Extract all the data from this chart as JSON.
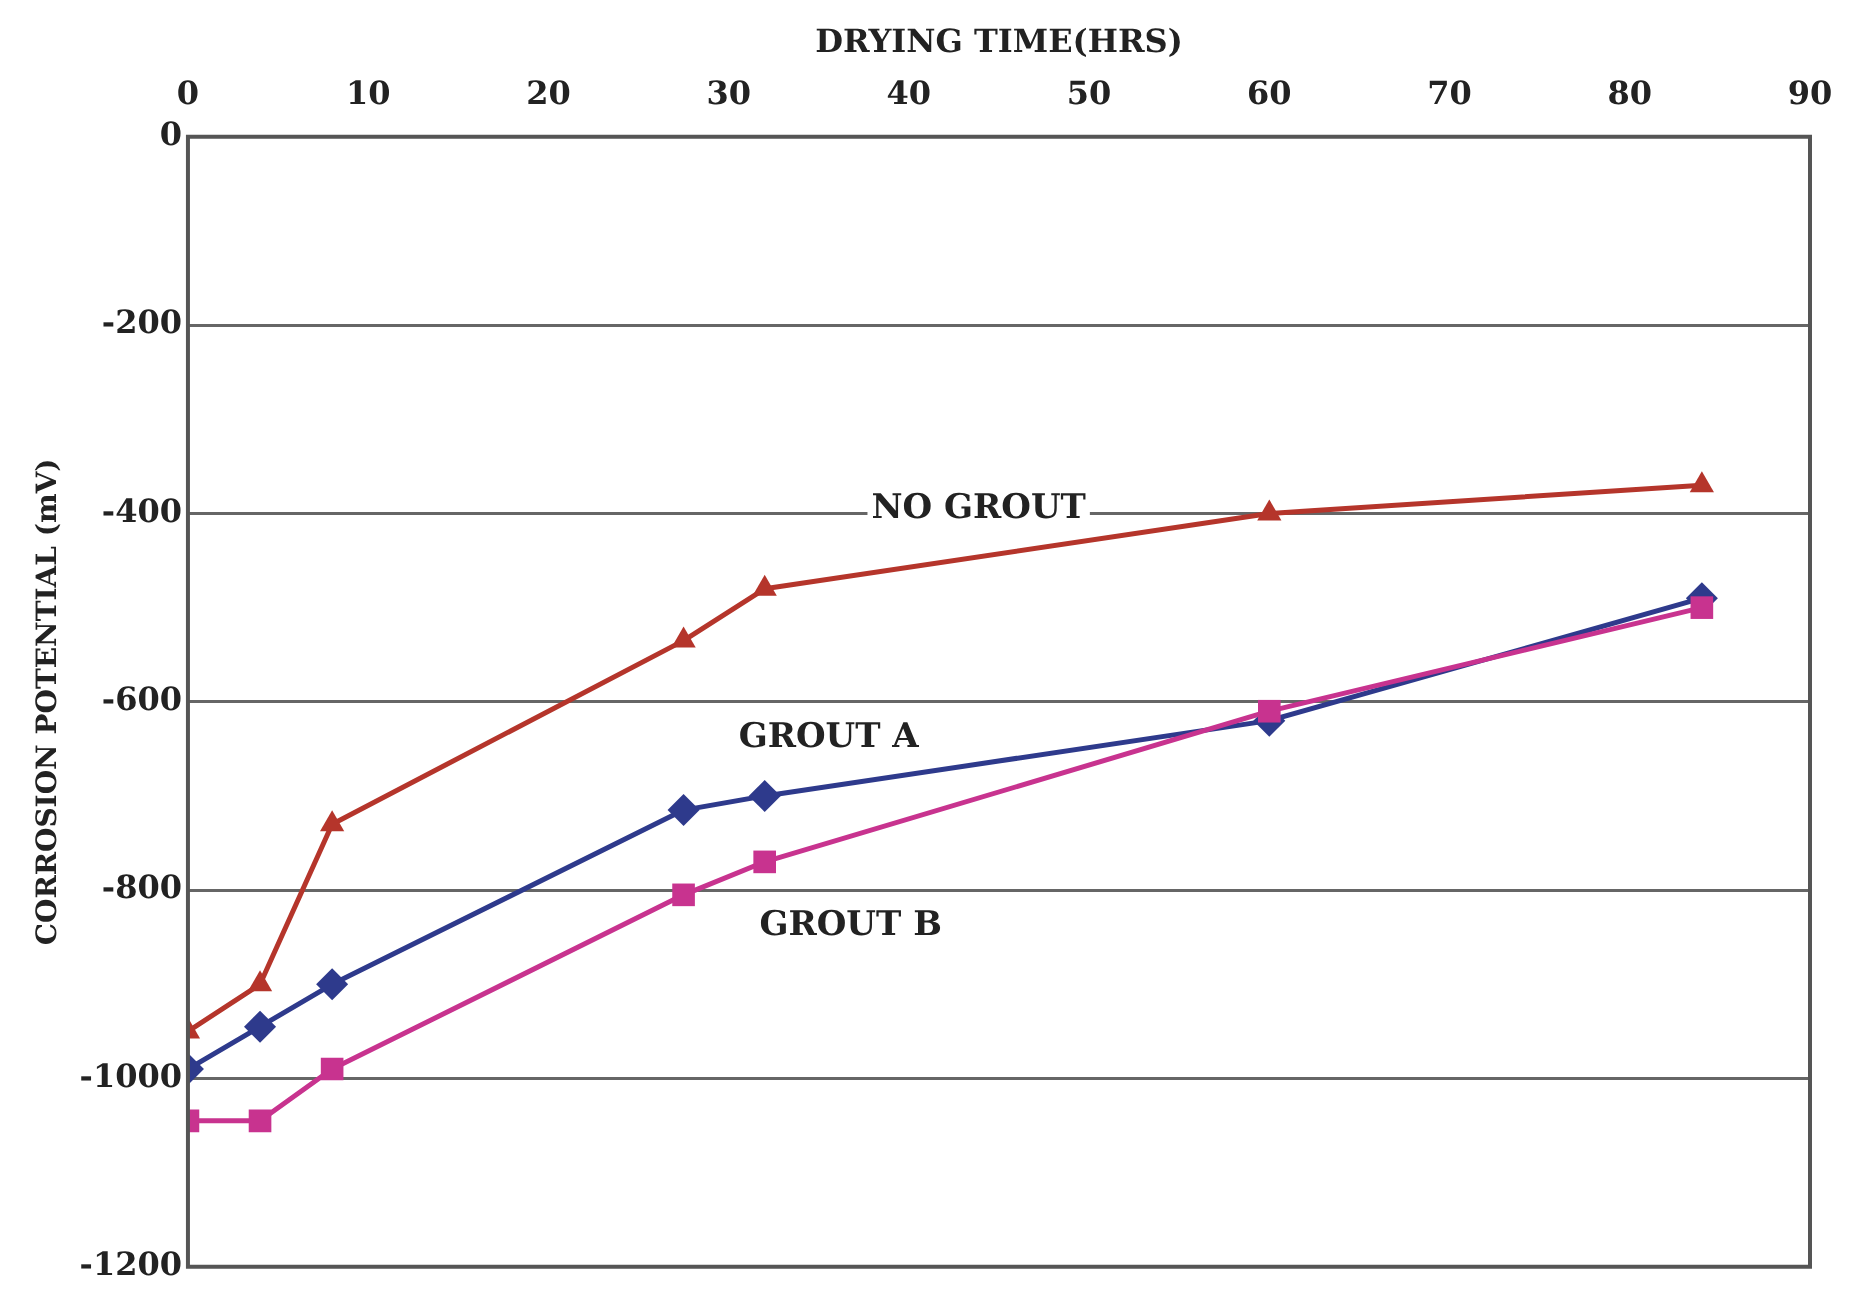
{
  "chart_data": {
    "type": "line",
    "xlabel": "DRYING TIME(HRS)",
    "ylabel": "CORROSION POTENTIAL (mV)",
    "xlim": [
      0,
      90
    ],
    "xticks": [
      0,
      10,
      20,
      30,
      40,
      50,
      60,
      70,
      80,
      90
    ],
    "ylim": [
      -1200,
      0
    ],
    "yticks": [
      -1200,
      -1000,
      -800,
      -600,
      -400,
      -200,
      0
    ],
    "grid": "y",
    "legend": false,
    "x": [
      0,
      4,
      8,
      27.5,
      32,
      60,
      84
    ],
    "series": [
      {
        "name": "NO GROUT",
        "color": "#b5352b",
        "marker": "triangle",
        "values": [
          -950,
          -900,
          -730,
          -535,
          -480,
          -400,
          -370
        ]
      },
      {
        "name": "GROUT A",
        "color": "#2e3a8c",
        "marker": "diamond",
        "values": [
          -990,
          -945,
          -900,
          -715,
          -700,
          -620,
          -490
        ]
      },
      {
        "name": "GROUT B",
        "color": "#c8338f",
        "marker": "square",
        "values": [
          -1045,
          -1045,
          -990,
          -805,
          -770,
          -610,
          -500
        ]
      }
    ]
  }
}
